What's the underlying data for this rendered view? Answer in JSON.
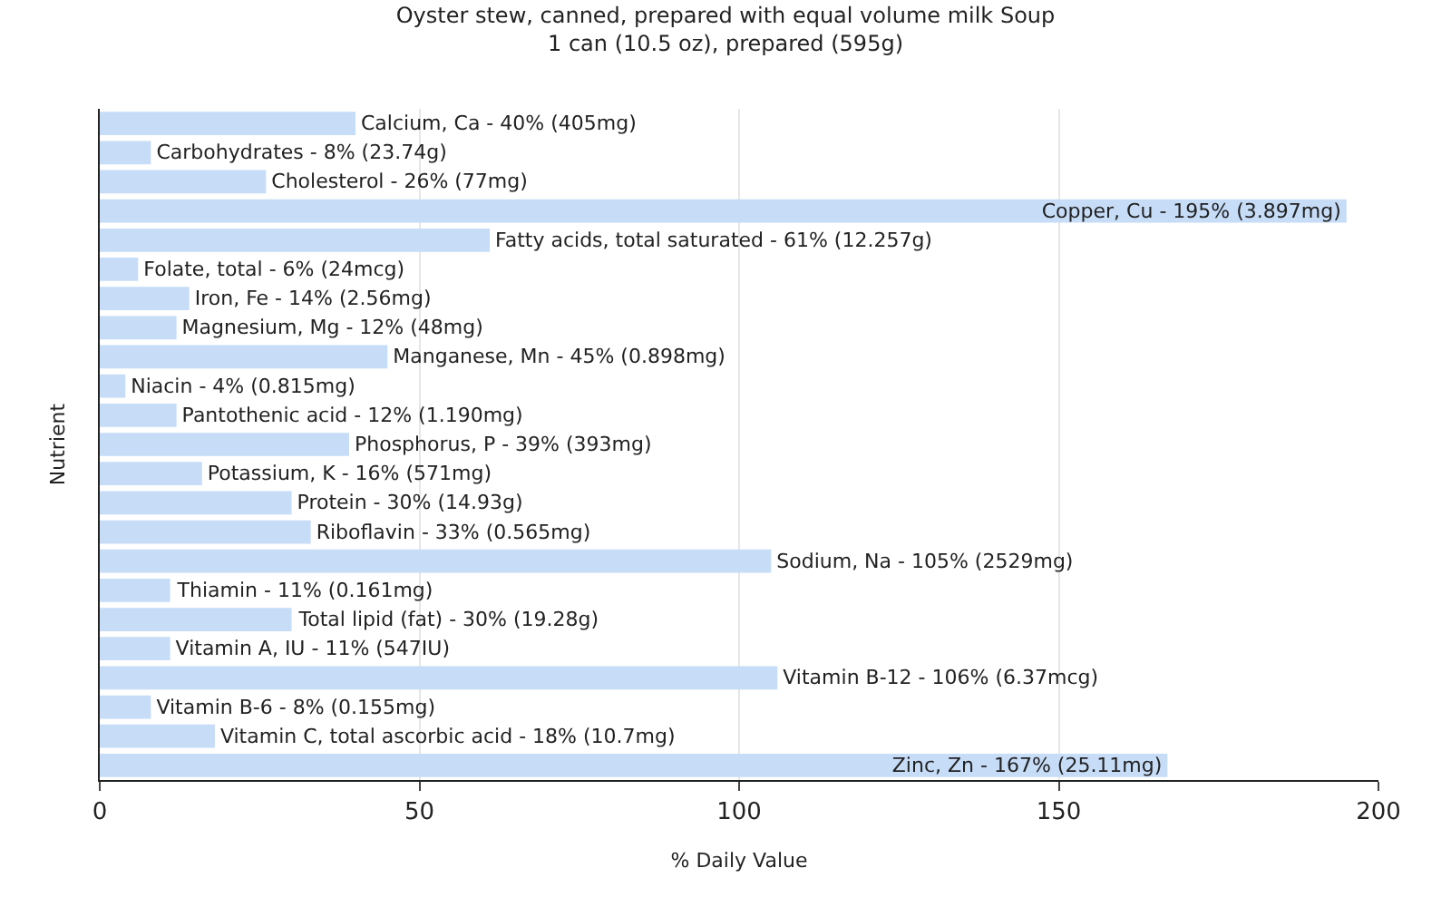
{
  "chart_data": {
    "type": "bar",
    "orientation": "horizontal",
    "title": "Oyster stew, canned, prepared with equal volume milk Soup\n1 can (10.5 oz), prepared (595g)",
    "xlabel": "% Daily Value",
    "ylabel": "Nutrient",
    "categories": [
      "Calcium, Ca -",
      "Carbohydrates -",
      "Cholesterol -",
      "Copper, Cu -",
      "Fatty acids, total saturated -",
      "Folate, total -",
      "Iron, Fe -",
      "Magnesium, Mg -",
      "Manganese, Mn -",
      "Niacin -",
      "Pantothenic acid -",
      "Phosphorus, P -",
      "Potassium, K -",
      "Protein -",
      "Riboflavin -",
      "Sodium, Na -",
      "Thiamin -",
      "Total lipid (fat) -",
      "Vitamin A, IU -",
      "Vitamin B-12 -",
      "Vitamin B-6 -",
      "Vitamin C, total ascorbic acid -",
      "Zinc, Zn -"
    ],
    "values": [
      40,
      8,
      26,
      195,
      61,
      6,
      14,
      12,
      45,
      4,
      12,
      39,
      16,
      30,
      33,
      105,
      11,
      30,
      11,
      106,
      8,
      18,
      167
    ],
    "value_labels": [
      "40% (405mg)",
      "8% (23.74g)",
      "26% (77mg)",
      "195% (3.897mg)",
      "61% (12.257g)",
      "6% (24mcg)",
      "14% (2.56mg)",
      "12% (48mg)",
      "45% (0.898mg)",
      "4% (0.815mg)",
      "12% (1.190mg)",
      "39% (393mg)",
      "16% (571mg)",
      "30% (14.93g)",
      "33% (0.565mg)",
      "105% (2529mg)",
      "11% (0.161mg)",
      "30% (19.28g)",
      "11% (547IU)",
      "106% (6.37mcg)",
      "8% (0.155mg)",
      "18% (10.7mg)",
      "167% (25.11mg)"
    ],
    "color": "#c6dcf7",
    "xlim": [
      0,
      200
    ],
    "xticks": [
      0,
      50,
      100,
      150,
      200
    ],
    "grid": "x",
    "tick_labels": "x",
    "legend": false
  }
}
